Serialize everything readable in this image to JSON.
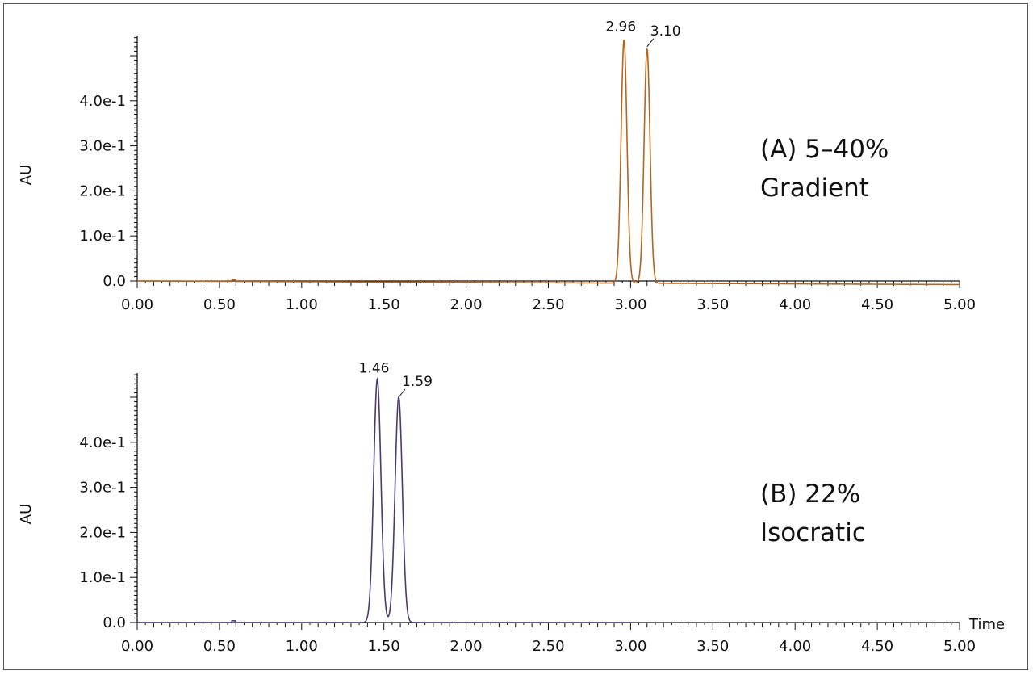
{
  "chart_data": [
    {
      "type": "line",
      "panel_label": "(A) 5–40%",
      "panel_sublabel": "Gradient",
      "ylabel": "AU",
      "xlabel": "",
      "xlim": [
        0,
        5
      ],
      "ylim": [
        -0.01,
        0.54
      ],
      "x_ticks": [
        "0.00",
        "0.50",
        "1.00",
        "1.50",
        "2.00",
        "2.50",
        "3.00",
        "3.50",
        "4.00",
        "4.50",
        "5.00"
      ],
      "y_ticks": [
        "0.0",
        "1.0e-1",
        "2.0e-1",
        "3.0e-1",
        "4.0e-1"
      ],
      "series": [
        {
          "color": "#b5651d",
          "x_range": [
            0,
            5
          ],
          "baseline_start": 0.0,
          "baseline_end": -0.008,
          "peaks": [
            {
              "rt": 2.96,
              "label": "2.96",
              "height": 0.54,
              "width": 0.018
            },
            {
              "rt": 3.1,
              "label": "3.10",
              "height": 0.52,
              "width": 0.018
            }
          ]
        }
      ]
    },
    {
      "type": "line",
      "panel_label": "(B) 22%",
      "panel_sublabel": "Isocratic",
      "ylabel": "AU",
      "xlabel": "Time",
      "xlim": [
        0,
        5
      ],
      "ylim": [
        -0.005,
        0.54
      ],
      "x_ticks": [
        "0.00",
        "0.50",
        "1.00",
        "1.50",
        "2.00",
        "2.50",
        "3.00",
        "3.50",
        "4.00",
        "4.50",
        "5.00"
      ],
      "y_ticks": [
        "0.0",
        "1.0e-1",
        "2.0e-1",
        "3.0e-1",
        "4.0e-1"
      ],
      "series": [
        {
          "color": "#4a3a6e",
          "x_range": [
            0,
            3.0
          ],
          "baseline_start": 0.0,
          "baseline_end": 0.0,
          "peaks": [
            {
              "rt": 1.46,
              "label": "1.46",
              "height": 0.54,
              "width": 0.022
            },
            {
              "rt": 1.59,
              "label": "1.59",
              "height": 0.5,
              "width": 0.022
            }
          ]
        }
      ]
    }
  ]
}
